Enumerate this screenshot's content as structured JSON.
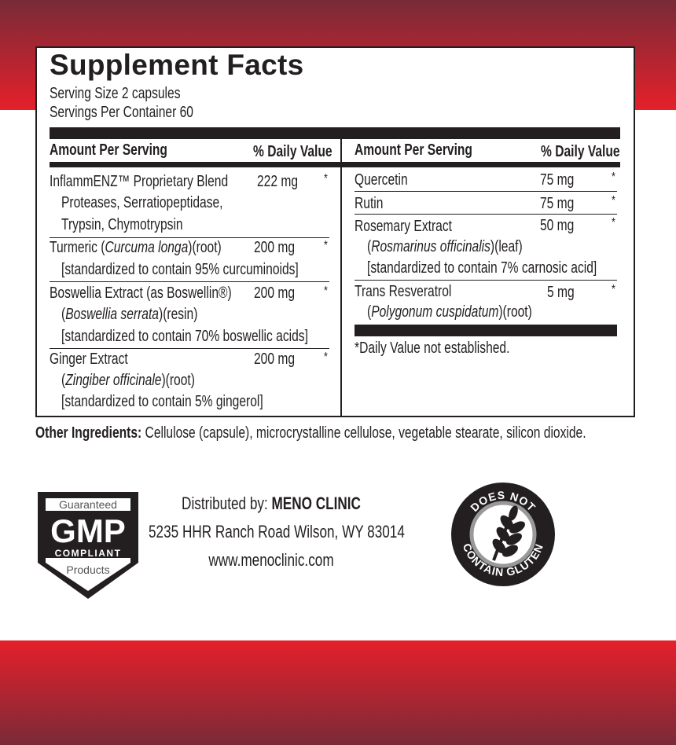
{
  "title": "Supplement Facts",
  "serving_size": "Serving Size 2 capsules",
  "servings_per_container": "Servings Per Container 60",
  "header": {
    "amount": "Amount Per Serving",
    "dv": "% Daily Value"
  },
  "left": [
    {
      "name": "InflammENZ™ Proprietary Blend",
      "amount": "222 mg",
      "dv": "*",
      "sub1": "Proteases, Serratiopeptidase,",
      "sub2": "Trypsin, Chymotrypsin"
    },
    {
      "name_pre": "Turmeric (",
      "name_it": "Curcuma longa",
      "name_post": ")(root)",
      "amount": "200 mg",
      "dv": "*",
      "sub1": "[standardized to contain 95% curcuminoids]"
    },
    {
      "name": "Boswellia Extract (as Boswellin®)",
      "amount": "200 mg",
      "dv": "*",
      "sub1_pre": "(",
      "sub1_it": "Boswellia serrata",
      "sub1_post": ")(resin)",
      "sub2": "[standardized to contain 70% boswellic acids]"
    },
    {
      "name": "Ginger Extract",
      "amount": "200 mg",
      "dv": "*",
      "sub1_pre": "(",
      "sub1_it": "Zingiber officinale",
      "sub1_post": ")(root)",
      "sub2": "[standardized to contain 5% gingerol]"
    }
  ],
  "right": [
    {
      "name": "Quercetin",
      "amount": "75 mg",
      "dv": "*"
    },
    {
      "name": "Rutin",
      "amount": "75 mg",
      "dv": "*"
    },
    {
      "name": "Rosemary Extract",
      "amount": "50 mg",
      "dv": "*",
      "sub1_pre": "(",
      "sub1_it": "Rosmarinus officinalis",
      "sub1_post": ")(leaf)",
      "sub2": "[standardized to contain 7% carnosic  acid]"
    },
    {
      "name": "Trans Resveratrol",
      "amount": "5 mg",
      "dv": "*",
      "sub1_pre": "(",
      "sub1_it": "Polygonum cuspidatum",
      "sub1_post": ")(root)"
    }
  ],
  "footnote": "*Daily Value not established.",
  "other": {
    "label": "Other Ingredients:",
    "text": " Cellulose (capsule), microcrystalline cellulose, vegetable stearate, silicon dioxide."
  },
  "distributor": {
    "prefix": "Distributed by:  ",
    "name": "MENO CLINIC",
    "address": "5235 HHR Ranch Road  Wilson, WY 83014",
    "website": "www.menoclinic.com"
  },
  "gmp": {
    "top": "Guaranteed",
    "main": "GMP",
    "compliant": "COMPLIANT",
    "bottom": "Products"
  },
  "gluten": {
    "top": "DOES NOT",
    "bottom": "CONTAIN GLUTEN",
    "icon": "wheat-icon"
  },
  "colors": {
    "band_dark": "#772b38",
    "band_red": "#e5202a",
    "ink": "#231f20"
  }
}
